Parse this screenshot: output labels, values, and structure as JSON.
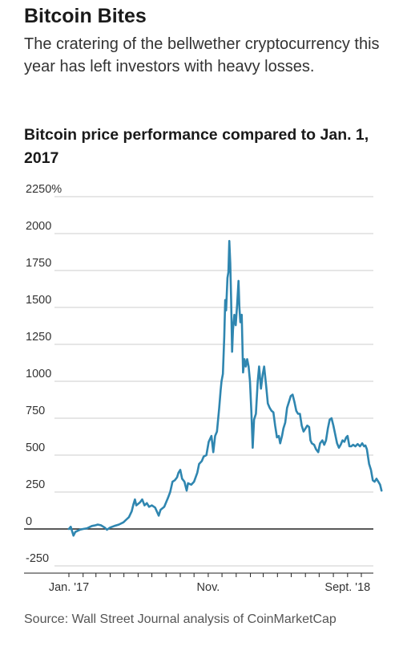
{
  "header": {
    "title": "Bitcoin Bites",
    "subtitle": "The cratering of the bellwether cryptocurrency this year has left investors with heavy losses."
  },
  "source": "Source: Wall Street Journal analysis of CoinMarketCap",
  "colors": {
    "line": "#2f86b0",
    "grid": "#cccccc",
    "zero": "#222222",
    "text": "#333333"
  },
  "chart_data": {
    "type": "line",
    "title": "Bitcoin price performance compared to Jan. 1, 2017",
    "ylim": [
      -250,
      2250
    ],
    "y_ticks": [
      {
        "value": 2250,
        "label": "2250%"
      },
      {
        "value": 2000,
        "label": "2000"
      },
      {
        "value": 1750,
        "label": "1750"
      },
      {
        "value": 1500,
        "label": "1500"
      },
      {
        "value": 1250,
        "label": "1250"
      },
      {
        "value": 1000,
        "label": "1000"
      },
      {
        "value": 750,
        "label": "750"
      },
      {
        "value": 500,
        "label": "500"
      },
      {
        "value": 250,
        "label": "250"
      },
      {
        "value": 0,
        "label": "0"
      },
      {
        "value": -250,
        "label": "-250"
      }
    ],
    "xlim": [
      "2017-01-01",
      "2018-10-15"
    ],
    "x_labels": [
      {
        "x": "2017-01-01",
        "label": "Jan. '17"
      },
      {
        "x": "2017-11-01",
        "label": "Nov."
      },
      {
        "x": "2018-09-01",
        "label": "Sept. '18"
      }
    ],
    "x_minor_ticks": [
      "2017-02-01",
      "2017-03-01",
      "2017-04-01",
      "2017-05-01",
      "2017-06-01",
      "2017-07-01",
      "2017-08-01",
      "2017-09-01",
      "2017-10-01",
      "2017-12-01",
      "2018-01-01",
      "2018-02-01",
      "2018-03-01",
      "2018-04-01",
      "2018-05-01",
      "2018-06-01",
      "2018-07-01",
      "2018-08-01",
      "2018-10-01"
    ],
    "series": [
      {
        "points": [
          [
            "2017-01-01",
            0
          ],
          [
            "2017-01-05",
            15
          ],
          [
            "2017-01-11",
            -45
          ],
          [
            "2017-01-15",
            -20
          ],
          [
            "2017-01-25",
            -5
          ],
          [
            "2017-02-01",
            0
          ],
          [
            "2017-02-10",
            5
          ],
          [
            "2017-02-20",
            20
          ],
          [
            "2017-02-28",
            25
          ],
          [
            "2017-03-05",
            30
          ],
          [
            "2017-03-12",
            25
          ],
          [
            "2017-03-20",
            10
          ],
          [
            "2017-03-25",
            -5
          ],
          [
            "2017-04-01",
            10
          ],
          [
            "2017-04-10",
            20
          ],
          [
            "2017-04-20",
            30
          ],
          [
            "2017-04-30",
            45
          ],
          [
            "2017-05-05",
            60
          ],
          [
            "2017-05-12",
            80
          ],
          [
            "2017-05-18",
            120
          ],
          [
            "2017-05-22",
            170
          ],
          [
            "2017-05-25",
            200
          ],
          [
            "2017-05-28",
            160
          ],
          [
            "2017-06-05",
            180
          ],
          [
            "2017-06-10",
            200
          ],
          [
            "2017-06-15",
            160
          ],
          [
            "2017-06-20",
            175
          ],
          [
            "2017-06-25",
            150
          ],
          [
            "2017-07-01",
            160
          ],
          [
            "2017-07-08",
            145
          ],
          [
            "2017-07-16",
            90
          ],
          [
            "2017-07-20",
            130
          ],
          [
            "2017-07-28",
            150
          ],
          [
            "2017-08-05",
            210
          ],
          [
            "2017-08-10",
            250
          ],
          [
            "2017-08-15",
            320
          ],
          [
            "2017-08-20",
            330
          ],
          [
            "2017-08-25",
            350
          ],
          [
            "2017-08-28",
            380
          ],
          [
            "2017-09-01",
            400
          ],
          [
            "2017-09-05",
            340
          ],
          [
            "2017-09-10",
            320
          ],
          [
            "2017-09-15",
            260
          ],
          [
            "2017-09-18",
            310
          ],
          [
            "2017-09-25",
            300
          ],
          [
            "2017-10-01",
            320
          ],
          [
            "2017-10-08",
            380
          ],
          [
            "2017-10-12",
            440
          ],
          [
            "2017-10-18",
            460
          ],
          [
            "2017-10-22",
            490
          ],
          [
            "2017-10-28",
            500
          ],
          [
            "2017-11-02",
            590
          ],
          [
            "2017-11-08",
            630
          ],
          [
            "2017-11-12",
            520
          ],
          [
            "2017-11-16",
            630
          ],
          [
            "2017-11-20",
            660
          ],
          [
            "2017-11-25",
            820
          ],
          [
            "2017-11-28",
            940
          ],
          [
            "2017-11-30",
            1000
          ],
          [
            "2017-12-03",
            1050
          ],
          [
            "2017-12-06",
            1300
          ],
          [
            "2017-12-08",
            1550
          ],
          [
            "2017-12-10",
            1480
          ],
          [
            "2017-12-13",
            1700
          ],
          [
            "2017-12-15",
            1740
          ],
          [
            "2017-12-17",
            1950
          ],
          [
            "2017-12-19",
            1800
          ],
          [
            "2017-12-21",
            1550
          ],
          [
            "2017-12-23",
            1200
          ],
          [
            "2017-12-25",
            1350
          ],
          [
            "2017-12-28",
            1450
          ],
          [
            "2017-12-31",
            1380
          ],
          [
            "2018-01-03",
            1520
          ],
          [
            "2018-01-06",
            1680
          ],
          [
            "2018-01-08",
            1500
          ],
          [
            "2018-01-10",
            1400
          ],
          [
            "2018-01-13",
            1450
          ],
          [
            "2018-01-16",
            1060
          ],
          [
            "2018-01-19",
            1150
          ],
          [
            "2018-01-22",
            1100
          ],
          [
            "2018-01-25",
            1150
          ],
          [
            "2018-01-28",
            1100
          ],
          [
            "2018-01-31",
            1000
          ],
          [
            "2018-02-03",
            800
          ],
          [
            "2018-02-06",
            550
          ],
          [
            "2018-02-09",
            740
          ],
          [
            "2018-02-13",
            780
          ],
          [
            "2018-02-17",
            1000
          ],
          [
            "2018-02-20",
            1100
          ],
          [
            "2018-02-24",
            950
          ],
          [
            "2018-02-28",
            1050
          ],
          [
            "2018-03-03",
            1100
          ],
          [
            "2018-03-07",
            980
          ],
          [
            "2018-03-11",
            850
          ],
          [
            "2018-03-15",
            820
          ],
          [
            "2018-03-19",
            800
          ],
          [
            "2018-03-23",
            790
          ],
          [
            "2018-03-27",
            700
          ],
          [
            "2018-03-31",
            620
          ],
          [
            "2018-04-04",
            630
          ],
          [
            "2018-04-07",
            580
          ],
          [
            "2018-04-11",
            630
          ],
          [
            "2018-04-14",
            680
          ],
          [
            "2018-04-18",
            720
          ],
          [
            "2018-04-22",
            820
          ],
          [
            "2018-04-26",
            860
          ],
          [
            "2018-04-30",
            900
          ],
          [
            "2018-05-04",
            910
          ],
          [
            "2018-05-08",
            860
          ],
          [
            "2018-05-12",
            800
          ],
          [
            "2018-05-16",
            780
          ],
          [
            "2018-05-20",
            780
          ],
          [
            "2018-05-24",
            700
          ],
          [
            "2018-05-28",
            660
          ],
          [
            "2018-06-01",
            680
          ],
          [
            "2018-06-05",
            700
          ],
          [
            "2018-06-09",
            690
          ],
          [
            "2018-06-12",
            600
          ],
          [
            "2018-06-15",
            580
          ],
          [
            "2018-06-20",
            570
          ],
          [
            "2018-06-24",
            540
          ],
          [
            "2018-06-29",
            520
          ],
          [
            "2018-07-03",
            580
          ],
          [
            "2018-07-08",
            600
          ],
          [
            "2018-07-12",
            570
          ],
          [
            "2018-07-16",
            600
          ],
          [
            "2018-07-20",
            680
          ],
          [
            "2018-07-24",
            740
          ],
          [
            "2018-07-28",
            750
          ],
          [
            "2018-08-01",
            700
          ],
          [
            "2018-08-05",
            640
          ],
          [
            "2018-08-09",
            580
          ],
          [
            "2018-08-13",
            550
          ],
          [
            "2018-08-17",
            570
          ],
          [
            "2018-08-21",
            600
          ],
          [
            "2018-08-25",
            590
          ],
          [
            "2018-08-29",
            620
          ],
          [
            "2018-09-01",
            630
          ],
          [
            "2018-09-05",
            560
          ],
          [
            "2018-09-09",
            560
          ],
          [
            "2018-09-13",
            570
          ],
          [
            "2018-09-18",
            560
          ],
          [
            "2018-09-23",
            575
          ],
          [
            "2018-09-28",
            560
          ],
          [
            "2018-10-03",
            580
          ],
          [
            "2018-10-07",
            560
          ],
          [
            "2018-10-10",
            565
          ],
          [
            "2018-10-13",
            540
          ],
          [
            "2018-10-18",
            440
          ],
          [
            "2018-10-22",
            400
          ],
          [
            "2018-10-26",
            330
          ],
          [
            "2018-10-30",
            320
          ],
          [
            "2018-11-03",
            340
          ],
          [
            "2018-11-07",
            320
          ],
          [
            "2018-11-11",
            300
          ],
          [
            "2018-11-14",
            260
          ]
        ]
      }
    ]
  }
}
